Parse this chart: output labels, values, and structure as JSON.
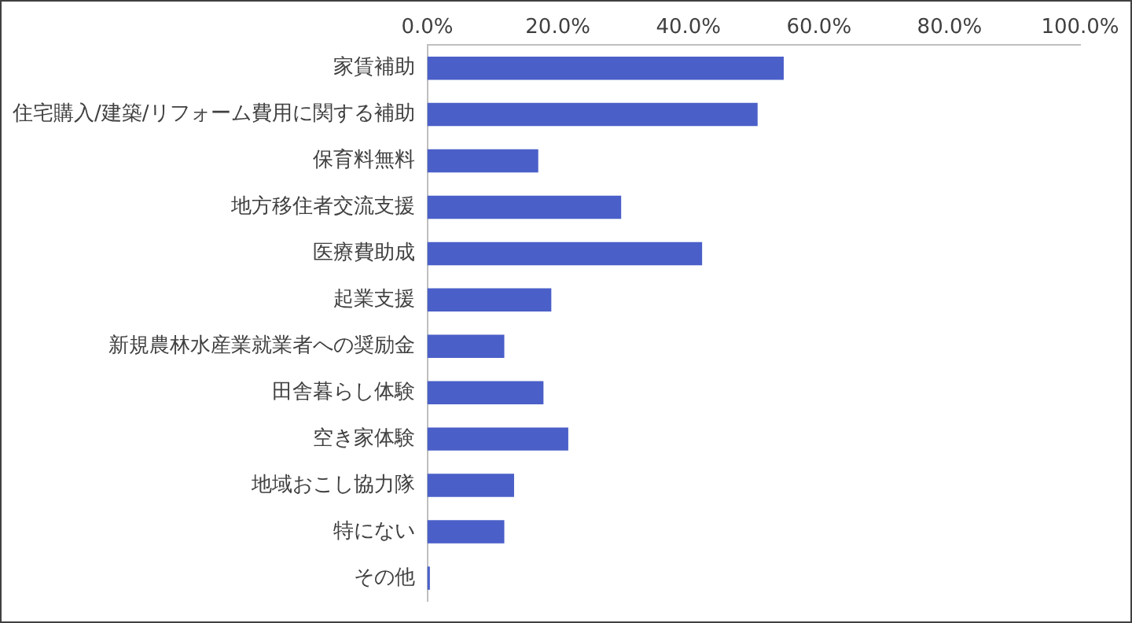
{
  "chart_data": {
    "type": "bar",
    "orientation": "horizontal",
    "categories": [
      "家賃補助",
      "住宅購入/建築/リフォーム費用に関する補助",
      "保育料無料",
      "地方移住者交流支援",
      "医療費助成",
      "起業支援",
      "新規農林水産業就業者への奨励金",
      "田舎暮らし体験",
      "空き家体験",
      "地域おこし協力隊",
      "特にない",
      "その他"
    ],
    "values": [
      54.6,
      50.6,
      17.0,
      29.7,
      42.1,
      19.0,
      11.8,
      17.8,
      21.6,
      13.3,
      11.8,
      0.4
    ],
    "color": "#4a5fc8",
    "xlim": [
      0,
      100
    ],
    "xticks": [
      {
        "value": 0,
        "label": "0.0%"
      },
      {
        "value": 20,
        "label": "20.0%"
      },
      {
        "value": 40,
        "label": "40.0%"
      },
      {
        "value": 60,
        "label": "60.0%"
      },
      {
        "value": 80,
        "label": "80.0%"
      },
      {
        "value": 100,
        "label": "100.0%"
      }
    ],
    "grid": false,
    "legend": false
  }
}
